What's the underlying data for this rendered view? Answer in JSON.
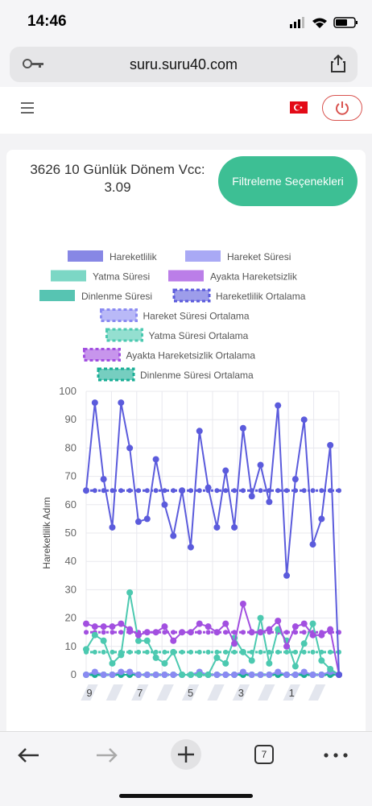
{
  "status_bar": {
    "time": "14:46"
  },
  "browser": {
    "url": "suru.suru40.com",
    "tab_count": "7"
  },
  "header": {
    "language_flag": "tr"
  },
  "page": {
    "title": "3626 10 Günlük Dönem Vcc: 3.09",
    "filter_button": "Filtreleme Seçenekleri"
  },
  "colors": {
    "accent": "#3dbf94",
    "danger": "#d9534f"
  },
  "chart_data": {
    "type": "line",
    "ylabel": "Hareketlilik Adım",
    "ylim": [
      0,
      100
    ],
    "yticks": [
      0,
      10,
      20,
      30,
      40,
      50,
      60,
      70,
      80,
      90,
      100
    ],
    "x_tick_labels": [
      "9",
      "",
      "7",
      "",
      "5",
      "",
      "3",
      "",
      "1",
      ""
    ],
    "legend_position": "top",
    "series": [
      {
        "name": "Hareketlilik",
        "color": "#5b5bdc",
        "style": "solid",
        "values": [
          65,
          96,
          69,
          52,
          96,
          80,
          54,
          55,
          76,
          60,
          49,
          65,
          45,
          86,
          66,
          52,
          72,
          52,
          87,
          63,
          74,
          61,
          95,
          35,
          69,
          90,
          46,
          55,
          81,
          0
        ]
      },
      {
        "name": "Hareket Süresi",
        "color": "#8a8af2",
        "style": "solid",
        "values": [
          0,
          1,
          0,
          0,
          1,
          1,
          0,
          0,
          0,
          0,
          0,
          0,
          0,
          1,
          0,
          0,
          0,
          0,
          1,
          0,
          0,
          0,
          1,
          0,
          0,
          1,
          0,
          0,
          1,
          0
        ]
      },
      {
        "name": "Yatma Süresi",
        "color": "#4cc9b0",
        "style": "solid",
        "values": [
          9,
          14,
          12,
          4,
          7,
          29,
          12,
          12,
          6,
          4,
          8,
          0,
          0,
          0,
          0,
          6,
          4,
          13,
          8,
          5,
          20,
          4,
          16,
          12,
          3,
          11,
          18,
          5,
          2,
          0
        ]
      },
      {
        "name": "Ayakta Hareketsizlik",
        "color": "#a24fe0",
        "style": "solid",
        "values": [
          18,
          17,
          17,
          17,
          18,
          16,
          14,
          15,
          15,
          17,
          12,
          15,
          15,
          18,
          17,
          15,
          18,
          11,
          25,
          15,
          15,
          16,
          19,
          10,
          17,
          18,
          14,
          14,
          16,
          0
        ]
      },
      {
        "name": "Dinlenme Süresi",
        "color": "#1aae96",
        "style": "solid",
        "values": [
          0,
          0,
          0,
          0,
          0,
          0,
          0,
          0,
          0,
          0,
          0,
          0,
          0,
          0,
          0,
          0,
          0,
          0,
          0,
          0,
          0,
          0,
          0,
          0,
          0,
          0,
          0,
          0,
          0,
          0
        ]
      },
      {
        "name": "Hareketlilik Ortalama",
        "color": "#5b5bdc",
        "style": "dashed",
        "values": [
          65,
          65,
          65,
          65,
          65,
          65,
          65,
          65,
          65,
          65,
          65,
          65,
          65,
          65,
          65,
          65,
          65,
          65,
          65,
          65,
          65,
          65,
          65,
          65,
          65,
          65,
          65,
          65,
          65,
          65
        ]
      },
      {
        "name": "Hareket Süresi Ortalama",
        "color": "#8a8af2",
        "style": "dashed",
        "values": [
          0,
          0,
          0,
          0,
          0,
          0,
          0,
          0,
          0,
          0,
          0,
          0,
          0,
          0,
          0,
          0,
          0,
          0,
          0,
          0,
          0,
          0,
          0,
          0,
          0,
          0,
          0,
          0,
          0,
          0
        ]
      },
      {
        "name": "Yatma Süresi Ortalama",
        "color": "#4cc9b0",
        "style": "dashed",
        "values": [
          8,
          8,
          8,
          8,
          8,
          8,
          8,
          8,
          8,
          8,
          8,
          8,
          8,
          8,
          8,
          8,
          8,
          8,
          8,
          8,
          8,
          8,
          8,
          8,
          8,
          8,
          8,
          8,
          8,
          8
        ]
      },
      {
        "name": "Ayakta Hareketsizlik Ortalama",
        "color": "#a24fe0",
        "style": "dashed",
        "values": [
          15,
          15,
          15,
          15,
          15,
          15,
          15,
          15,
          15,
          15,
          15,
          15,
          15,
          15,
          15,
          15,
          15,
          15,
          15,
          15,
          15,
          15,
          15,
          15,
          15,
          15,
          15,
          15,
          15,
          15
        ]
      },
      {
        "name": "Dinlenme Süresi Ortalama",
        "color": "#1aae96",
        "style": "dashed",
        "values": [
          0,
          0,
          0,
          0,
          0,
          0,
          0,
          0,
          0,
          0,
          0,
          0,
          0,
          0,
          0,
          0,
          0,
          0,
          0,
          0,
          0,
          0,
          0,
          0,
          0,
          0,
          0,
          0,
          0,
          0
        ]
      }
    ]
  }
}
